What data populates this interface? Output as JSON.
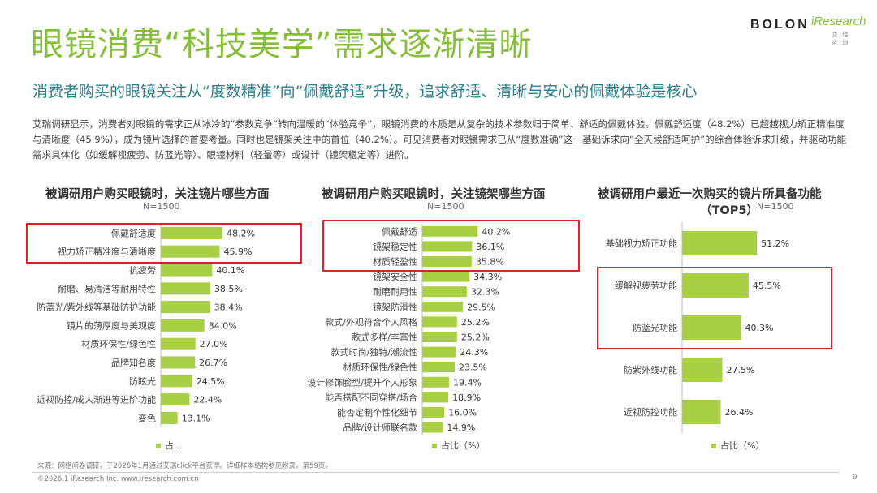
{
  "header": {
    "title": "眼镜消费“科技美学”需求逐渐清晰",
    "subtitle": "消费者购买的眼镜关注从“度数精准”向“佩戴舒适”升级，追求舒适、清晰与安心的佩戴体验是核心",
    "description": "艾瑞调研显示，消费者对眼镜的需求正从冰冷的“参数竞争”转向温暖的“体验竞争”，眼镜消费的本质是从复杂的技术参数归于简单、舒适的佩戴体验。佩戴舒适度（48.2%）已超越视力矫正精准度与清晰度（45.9%），成为镜片选择的首要考量。同时也是镜架关注中的首位（40.2%）。可见消费者对眼镜需求已从“度数准确”这一基础诉求向“全天候舒适呵护”的综合体验诉求升级，并驱动功能需求具体化（如缓解视疲劳、防蓝光等）、眼镜材料（轻量等）或设计（镜架稳定等）进阶。"
  },
  "logo": {
    "brand": "BOLON",
    "partner": "iResearch",
    "partner_sub": "艾 瑞 咨 询"
  },
  "colors": {
    "bar": "#a9cf45",
    "title": "#86bd3c",
    "subtitle": "#2e7d8d",
    "highlight": "#e2202c"
  },
  "chart_data": [
    {
      "type": "bar",
      "orientation": "horizontal",
      "title": "被调研用户购买眼镜时，关注镜片哪些方面",
      "sample": "N=1500",
      "legend": "占...",
      "categories": [
        "佩戴舒适度",
        "视力矫正精准度与清晰度",
        "抗疲劳",
        "耐磨、易清洁等耐用特性",
        "防蓝光/紫外线等基础防护功能",
        "镜片的薄厚度与美观度",
        "材质环保性/绿色性",
        "品牌知名度",
        "防眩光",
        "近视防控/成人渐进等进阶功能",
        "变色"
      ],
      "values": [
        48.2,
        45.9,
        40.1,
        38.5,
        38.4,
        34.0,
        27.0,
        26.7,
        24.5,
        22.4,
        13.1
      ],
      "labels": [
        "48.2%",
        "45.9%",
        "40.1%",
        "38.5%",
        "38.4%",
        "34.0%",
        "27.0%",
        "26.7%",
        "24.5%",
        "22.4%",
        "13.1%"
      ],
      "highlighted": [
        0,
        1
      ]
    },
    {
      "type": "bar",
      "orientation": "horizontal",
      "title": "被调研用户购买眼镜时，关注镜架哪些方面",
      "sample": "N=1500",
      "legend": "占比（%）",
      "categories": [
        "佩戴舒适",
        "镜架稳定性",
        "材质轻盈性",
        "镜架安全性",
        "耐磨耐用性",
        "镜架防滑性",
        "款式/外观符合个人风格",
        "款式多样/丰富性",
        "款式时尚/独特/潮流性",
        "材质环保性/绿色性",
        "设计修饰脸型/提升个人形象",
        "能否搭配不同穿搭/场合",
        "能否定制个性化细节",
        "品牌/设计师联名款"
      ],
      "values": [
        40.2,
        36.1,
        35.8,
        34.3,
        32.3,
        29.5,
        25.2,
        25.2,
        24.3,
        23.5,
        19.4,
        18.9,
        16.0,
        14.9
      ],
      "labels": [
        "40.2%",
        "36.1%",
        "35.8%",
        "34.3%",
        "32.3%",
        "29.5%",
        "25.2%",
        "25.2%",
        "24.3%",
        "23.5%",
        "19.4%",
        "18.9%",
        "16.0%",
        "14.9%"
      ],
      "highlighted": [
        0,
        1,
        2
      ]
    },
    {
      "type": "bar",
      "orientation": "horizontal",
      "title": "被调研用户最近一次购买的镜片所具备功能（TOP5）",
      "title_line1": "被调研用户最近一次购买的镜片所具备功能",
      "title_line2": "（TOP5）",
      "sample": "N=1500",
      "legend": "占比（%）",
      "categories": [
        "基础视力矫正功能",
        "缓解视疲劳功能",
        "防蓝光功能",
        "防紫外线功能",
        "近视防控功能"
      ],
      "values": [
        51.2,
        45.5,
        40.3,
        27.5,
        26.4
      ],
      "labels": [
        "51.2%",
        "45.5%",
        "40.3%",
        "27.5%",
        "26.4%"
      ],
      "highlighted": [
        1,
        2
      ]
    }
  ],
  "footer": {
    "source": "来源：网络问卷调研，于2026年1月通过艾瑞click平台获得。详细样本结构参见附录，第59页。",
    "copyright": "©2026.1 iResearch Inc.                     www.iresearch.com.cn",
    "page": "9"
  }
}
